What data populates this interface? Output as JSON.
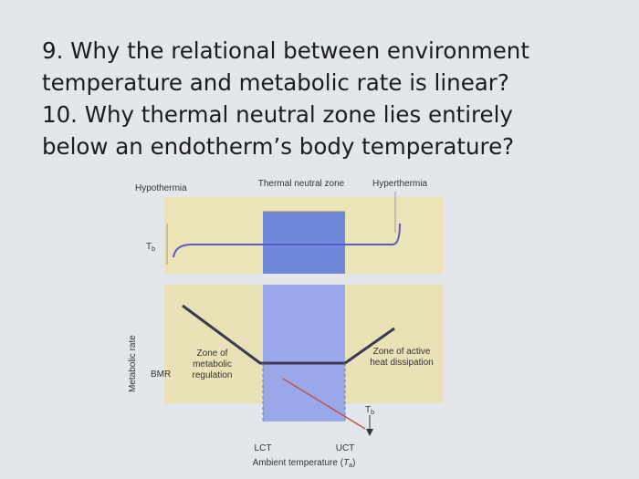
{
  "questions": [
    "9. Why the relational between environment temperature and metabolic rate is linear?",
    "10. Why thermal neutral zone lies entirely below an endotherm’s body temperature?"
  ],
  "diagram": {
    "zones": {
      "hypothermia": "Hypothermia",
      "thermal_neutral": "Thermal neutral zone",
      "hyperthermia": "Hyperthermia"
    },
    "body_temp": {
      "symbol": "T",
      "subscript": "b"
    },
    "y_axis_label": "Metabolic rate",
    "bmr": "BMR",
    "left_zone": "Zone of metabolic regulation",
    "right_zone": "Zone of active heat dissipation",
    "lct": "LCT",
    "uct": "UCT",
    "x_axis_label": {
      "text": "Ambient temperature (",
      "symbol": "T",
      "subscript": "a",
      "close": ")"
    }
  }
}
